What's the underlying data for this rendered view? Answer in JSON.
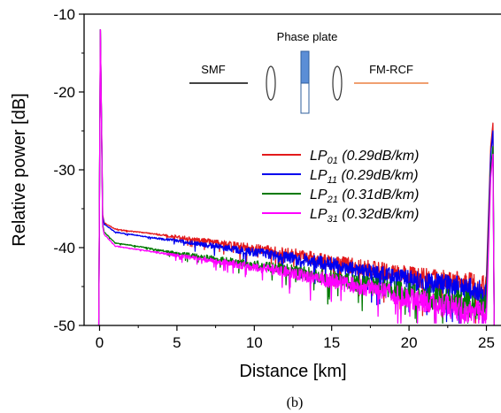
{
  "chart_data": {
    "type": "line",
    "caption": "(b)",
    "xlabel": "Distance [km]",
    "ylabel": "Relative power [dB]",
    "xlim": [
      -1,
      26
    ],
    "ylim": [
      -50,
      -10
    ],
    "xticks": [
      0,
      5,
      10,
      15,
      20,
      25
    ],
    "yticks": [
      -10,
      -20,
      -30,
      -40,
      -50
    ],
    "grid": false,
    "legend_position": "right",
    "series": [
      {
        "name": "LP01 (0.29dB/km)",
        "legend": {
          "base": "LP",
          "sub": "01",
          "rest": " (0.29dB/km)"
        },
        "color": "#e31a1c",
        "spike_start": -12.0,
        "spike_end": -27.0,
        "points": [
          [
            0.3,
            -36.8
          ],
          [
            1,
            -37.6
          ],
          [
            2,
            -37.9
          ],
          [
            3,
            -38.1
          ],
          [
            4,
            -38.4
          ],
          [
            5,
            -38.6
          ],
          [
            6,
            -38.9
          ],
          [
            7,
            -39.2
          ],
          [
            8,
            -39.5
          ],
          [
            9,
            -39.8
          ],
          [
            10,
            -40.1
          ],
          [
            11,
            -40.4
          ],
          [
            12,
            -40.7
          ],
          [
            13,
            -41.0
          ],
          [
            14,
            -41.4
          ],
          [
            15,
            -41.8
          ],
          [
            16,
            -42.2
          ],
          [
            17,
            -42.6
          ],
          [
            18,
            -42.9
          ],
          [
            19,
            -43.3
          ],
          [
            20,
            -43.6
          ],
          [
            21,
            -43.9
          ],
          [
            22,
            -44.2
          ],
          [
            23,
            -44.5
          ],
          [
            24,
            -44.8
          ],
          [
            25,
            -45.2
          ]
        ]
      },
      {
        "name": "LP11 (0.29dB/km)",
        "legend": {
          "base": "LP",
          "sub": "11",
          "rest": " (0.29dB/km)"
        },
        "color": "#0000ee",
        "spike_start": -12.0,
        "spike_end": -28.0,
        "points": [
          [
            0.3,
            -37.0
          ],
          [
            1,
            -38.0
          ],
          [
            2,
            -38.3
          ],
          [
            3,
            -38.6
          ],
          [
            4,
            -38.9
          ],
          [
            5,
            -39.1
          ],
          [
            6,
            -39.4
          ],
          [
            7,
            -39.7
          ],
          [
            8,
            -40.0
          ],
          [
            9,
            -40.3
          ],
          [
            10,
            -40.6
          ],
          [
            11,
            -40.9
          ],
          [
            12,
            -41.2
          ],
          [
            13,
            -41.5
          ],
          [
            14,
            -41.8
          ],
          [
            15,
            -42.2
          ],
          [
            16,
            -42.6
          ],
          [
            17,
            -43.0
          ],
          [
            18,
            -43.4
          ],
          [
            19,
            -43.8
          ],
          [
            20,
            -44.2
          ],
          [
            21,
            -44.5
          ],
          [
            22,
            -44.8
          ],
          [
            23,
            -45.1
          ],
          [
            24,
            -45.5
          ],
          [
            25,
            -45.9
          ]
        ]
      },
      {
        "name": "LP21 (0.31dB/km)",
        "legend": {
          "base": "LP",
          "sub": "21",
          "rest": " (0.31dB/km)"
        },
        "color": "#007a00",
        "spike_start": -12.0,
        "spike_end": -30.0,
        "points": [
          [
            0.3,
            -38.0
          ],
          [
            1,
            -39.4
          ],
          [
            2,
            -39.7
          ],
          [
            3,
            -40.0
          ],
          [
            4,
            -40.4
          ],
          [
            5,
            -40.7
          ],
          [
            6,
            -41.0
          ],
          [
            7,
            -41.3
          ],
          [
            8,
            -41.6
          ],
          [
            9,
            -41.9
          ],
          [
            10,
            -42.2
          ],
          [
            11,
            -42.5
          ],
          [
            12,
            -42.8
          ],
          [
            13,
            -43.2
          ],
          [
            14,
            -43.5
          ],
          [
            15,
            -43.9
          ],
          [
            16,
            -44.3
          ],
          [
            17,
            -44.7
          ],
          [
            18,
            -45.1
          ],
          [
            19,
            -45.5
          ],
          [
            20,
            -45.9
          ],
          [
            21,
            -46.3
          ],
          [
            22,
            -46.6
          ],
          [
            23,
            -47.0
          ],
          [
            24,
            -47.4
          ],
          [
            25,
            -47.8
          ]
        ]
      },
      {
        "name": "LP31 (0.32dB/km)",
        "legend": {
          "base": "LP",
          "sub": "31",
          "rest": " (0.32dB/km)"
        },
        "color": "#ff00ff",
        "spike_start": -12.0,
        "spike_end": -31.0,
        "points": [
          [
            0.3,
            -38.3
          ],
          [
            1,
            -39.8
          ],
          [
            2,
            -40.1
          ],
          [
            3,
            -40.4
          ],
          [
            4,
            -40.7
          ],
          [
            5,
            -41.0
          ],
          [
            6,
            -41.3
          ],
          [
            7,
            -41.6
          ],
          [
            8,
            -41.9
          ],
          [
            9,
            -42.2
          ],
          [
            10,
            -42.5
          ],
          [
            11,
            -42.8
          ],
          [
            12,
            -43.1
          ],
          [
            13,
            -43.5
          ],
          [
            14,
            -43.9
          ],
          [
            15,
            -44.3
          ],
          [
            16,
            -44.7
          ],
          [
            17,
            -45.1
          ],
          [
            18,
            -45.6
          ],
          [
            19,
            -46.0
          ],
          [
            20,
            -46.5
          ],
          [
            21,
            -46.9
          ],
          [
            22,
            -47.3
          ],
          [
            23,
            -47.7
          ],
          [
            24,
            -48.2
          ],
          [
            25,
            -48.6
          ]
        ]
      }
    ],
    "inset": {
      "phase_plate_label": "Phase plate",
      "left_fiber_label": "SMF",
      "right_fiber_label": "FM-RCF",
      "left_fiber_color": "#444444",
      "right_fiber_color": "#f0a070",
      "plate_color": "#5b8ed6",
      "plate_frame_color": "#2f5f9e"
    }
  }
}
